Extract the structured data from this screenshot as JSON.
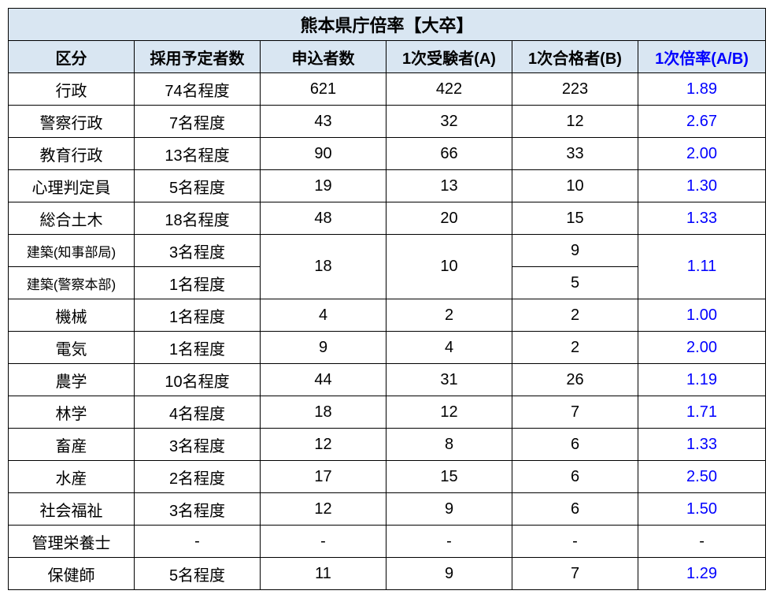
{
  "title": "熊本県庁倍率【大卒】",
  "headers": {
    "category": "区分",
    "planned": "採用予定者数",
    "applicants": "申込者数",
    "firstExam": "1次受験者(A)",
    "firstPass": "1次合格者(B)",
    "ratio": "1次倍率(A/B)"
  },
  "colors": {
    "header_bg": "#d9e6f2",
    "ratio_text": "#0000ff",
    "border": "#000000",
    "bg": "#ffffff"
  },
  "rows": [
    {
      "category": "行政",
      "planned": "74名程度",
      "applicants": "621",
      "firstExam": "422",
      "firstPass": "223",
      "ratio": "1.89"
    },
    {
      "category": "警察行政",
      "planned": "7名程度",
      "applicants": "43",
      "firstExam": "32",
      "firstPass": "12",
      "ratio": "2.67"
    },
    {
      "category": "教育行政",
      "planned": "13名程度",
      "applicants": "90",
      "firstExam": "66",
      "firstPass": "33",
      "ratio": "2.00"
    },
    {
      "category": "心理判定員",
      "planned": "5名程度",
      "applicants": "19",
      "firstExam": "13",
      "firstPass": "10",
      "ratio": "1.30"
    },
    {
      "category": "総合土木",
      "planned": "18名程度",
      "applicants": "48",
      "firstExam": "20",
      "firstPass": "15",
      "ratio": "1.33"
    }
  ],
  "merged": {
    "row1": {
      "category": "建築(知事部局)",
      "planned": "3名程度",
      "firstPass": "9"
    },
    "row2": {
      "category": "建築(警察本部)",
      "planned": "1名程度",
      "firstPass": "5"
    },
    "applicants": "18",
    "firstExam": "10",
    "ratio": "1.11"
  },
  "rows2": [
    {
      "category": "機械",
      "planned": "1名程度",
      "applicants": "4",
      "firstExam": "2",
      "firstPass": "2",
      "ratio": "1.00"
    },
    {
      "category": "電気",
      "planned": "1名程度",
      "applicants": "9",
      "firstExam": "4",
      "firstPass": "2",
      "ratio": "2.00"
    },
    {
      "category": "農学",
      "planned": "10名程度",
      "applicants": "44",
      "firstExam": "31",
      "firstPass": "26",
      "ratio": "1.19"
    },
    {
      "category": "林学",
      "planned": "4名程度",
      "applicants": "18",
      "firstExam": "12",
      "firstPass": "7",
      "ratio": "1.71"
    },
    {
      "category": "畜産",
      "planned": "3名程度",
      "applicants": "12",
      "firstExam": "8",
      "firstPass": "6",
      "ratio": "1.33"
    },
    {
      "category": "水産",
      "planned": "2名程度",
      "applicants": "17",
      "firstExam": "15",
      "firstPass": "6",
      "ratio": "2.50"
    },
    {
      "category": "社会福祉",
      "planned": "3名程度",
      "applicants": "12",
      "firstExam": "9",
      "firstPass": "6",
      "ratio": "1.50"
    },
    {
      "category": "管理栄養士",
      "planned": "-",
      "applicants": "-",
      "firstExam": "-",
      "firstPass": "-",
      "ratio": "-",
      "ratioBlack": true
    },
    {
      "category": "保健師",
      "planned": "5名程度",
      "applicants": "11",
      "firstExam": "9",
      "firstPass": "7",
      "ratio": "1.29"
    }
  ]
}
